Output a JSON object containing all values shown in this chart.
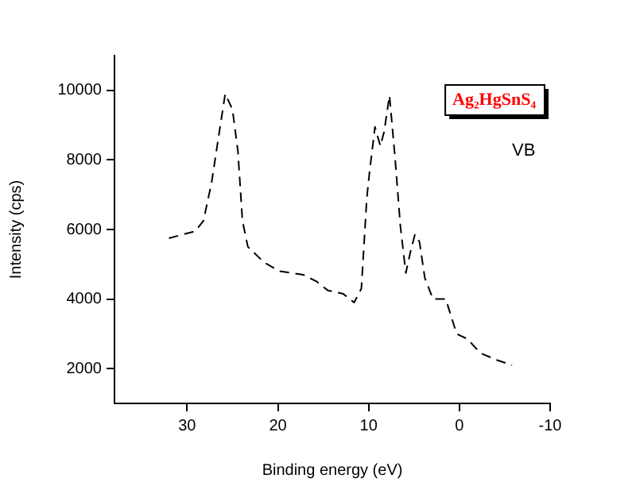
{
  "chart_data": {
    "type": "line",
    "xlabel": "Binding energy (eV)",
    "ylabel": "Intensity (cps)",
    "xlim": [
      38,
      -10
    ],
    "xticks": [
      30,
      20,
      10,
      0,
      -10
    ],
    "ylim": [
      1000,
      11000
    ],
    "yticks": [
      2000,
      4000,
      6000,
      8000,
      10000
    ],
    "grid": false,
    "legend": false,
    "marker": "none",
    "line_style": "dashed",
    "annotations": [
      "Ag₂HgSnS₄",
      "VB"
    ],
    "series": [
      {
        "color": "#000000",
        "x": [
          32.0,
          29.1,
          28.2,
          27.3,
          26.6,
          25.8,
          25.0,
          24.4,
          23.9,
          23.3,
          21.5,
          19.8,
          17.2,
          15.7,
          14.5,
          12.8,
          11.6,
          10.8,
          10.2,
          9.9,
          9.3,
          8.7,
          8.3,
          7.7,
          7.1,
          6.5,
          5.9,
          5.4,
          4.9,
          4.4,
          3.8,
          2.9,
          1.5,
          0.3,
          -0.9,
          -2.3,
          -4.1,
          -5.8
        ],
        "values": [
          5750,
          5950,
          6250,
          7350,
          8550,
          9900,
          9450,
          8250,
          6250,
          5500,
          5050,
          4800,
          4700,
          4500,
          4250,
          4150,
          3900,
          4300,
          6900,
          7650,
          8950,
          8400,
          8800,
          9850,
          8100,
          6100,
          4750,
          5350,
          5850,
          5650,
          4600,
          4000,
          4000,
          3000,
          2850,
          2450,
          2250,
          2100
        ]
      }
    ]
  }
}
